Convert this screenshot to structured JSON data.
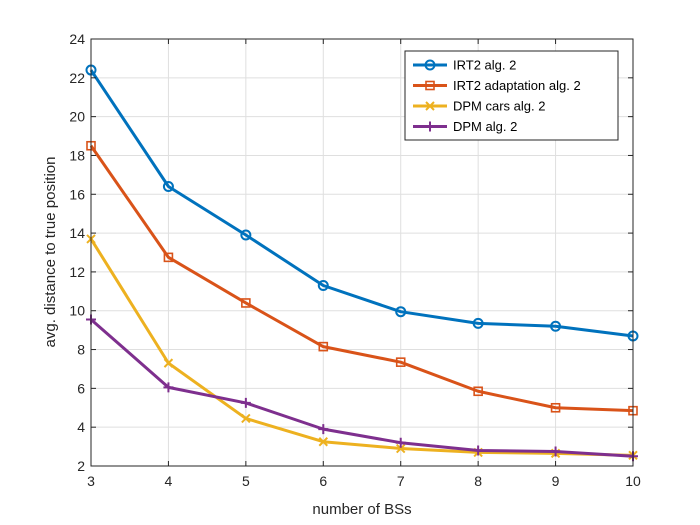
{
  "chart_data": {
    "type": "line",
    "title": "",
    "xlabel": "number of BSs",
    "ylabel": "avg. distance to true position",
    "x": [
      3,
      4,
      5,
      6,
      7,
      8,
      9,
      10
    ],
    "xlim": [
      3,
      10
    ],
    "ylim": [
      2,
      24
    ],
    "xticks": [
      "3",
      "4",
      "5",
      "6",
      "7",
      "8",
      "9",
      "10"
    ],
    "yticks": [
      "2",
      "4",
      "6",
      "8",
      "10",
      "12",
      "14",
      "16",
      "18",
      "20",
      "22",
      "24"
    ],
    "grid": true,
    "legend_position": "top-right",
    "series": [
      {
        "name": "IRT2 alg. 2",
        "color": "#0072BD",
        "marker": "circle",
        "values": [
          22.4,
          16.4,
          13.9,
          11.3,
          9.95,
          9.35,
          9.2,
          8.7
        ]
      },
      {
        "name": "IRT2 adaptation alg. 2",
        "color": "#D95319",
        "marker": "square",
        "values": [
          18.5,
          12.75,
          10.4,
          8.15,
          7.35,
          5.85,
          5.0,
          4.85
        ]
      },
      {
        "name": "DPM cars alg. 2",
        "color": "#EDB120",
        "marker": "x",
        "values": [
          13.7,
          7.3,
          4.45,
          3.25,
          2.9,
          2.7,
          2.65,
          2.55
        ]
      },
      {
        "name": "DPM alg. 2",
        "color": "#7E2F8E",
        "marker": "plus",
        "values": [
          9.55,
          6.05,
          5.25,
          3.9,
          3.2,
          2.8,
          2.75,
          2.5
        ]
      }
    ]
  }
}
